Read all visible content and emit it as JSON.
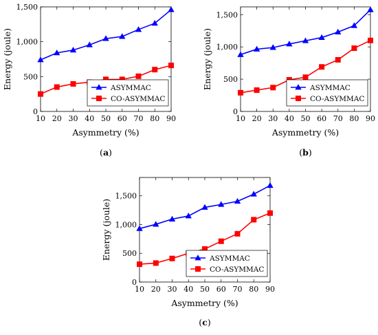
{
  "chart_data": [
    {
      "type": "line",
      "caption_letter": "a",
      "x": [
        10,
        20,
        30,
        40,
        50,
        60,
        70,
        80,
        90
      ],
      "xlabel": "Asymmetry (%)",
      "ylabel": "Energy (joule)",
      "xlim": [
        10,
        90
      ],
      "ylim": [
        0,
        1500
      ],
      "yticks": [
        0,
        500,
        1000,
        1500
      ],
      "ytick_labels": [
        "0",
        "500",
        "1,000",
        "1,500"
      ],
      "xticks": [
        10,
        20,
        30,
        40,
        50,
        60,
        70,
        80,
        90
      ],
      "legend_placement": "bottom-right",
      "series": [
        {
          "name": "ASYMMAC",
          "color": "#0000ff",
          "marker": "triangle-open",
          "values": [
            740,
            840,
            880,
            955,
            1045,
            1075,
            1175,
            1265,
            1460
          ]
        },
        {
          "name": "CO-ASYMMAC",
          "color": "#ff0000",
          "marker": "square-filled",
          "values": [
            250,
            350,
            395,
            420,
            460,
            460,
            505,
            600,
            660
          ]
        }
      ]
    },
    {
      "type": "line",
      "caption_letter": "b",
      "x": [
        10,
        20,
        30,
        40,
        50,
        60,
        70,
        80,
        90
      ],
      "xlabel": "Asymmetry (%)",
      "ylabel": "Energy (joule)",
      "xlim": [
        10,
        90
      ],
      "ylim": [
        0,
        1620
      ],
      "yticks": [
        0,
        500,
        1000,
        1500
      ],
      "ytick_labels": [
        "0",
        "500",
        "1,000",
        "1,500"
      ],
      "xticks": [
        10,
        20,
        30,
        40,
        50,
        60,
        70,
        80,
        90
      ],
      "legend_placement": "bottom-right",
      "series": [
        {
          "name": "ASYMMAC",
          "color": "#0000ff",
          "marker": "triangle-open",
          "values": [
            880,
            965,
            990,
            1045,
            1095,
            1145,
            1230,
            1330,
            1575
          ]
        },
        {
          "name": "CO-ASYMMAC",
          "color": "#ff0000",
          "marker": "square-filled",
          "values": [
            290,
            330,
            370,
            490,
            530,
            690,
            800,
            980,
            1100
          ]
        }
      ]
    },
    {
      "type": "line",
      "caption_letter": "c",
      "x": [
        10,
        20,
        30,
        40,
        50,
        60,
        70,
        80,
        90
      ],
      "xlabel": "Asymmetry (%)",
      "ylabel": "Energy (joule)",
      "xlim": [
        10,
        90
      ],
      "ylim": [
        0,
        1820
      ],
      "yticks": [
        0,
        500,
        1000,
        1500
      ],
      "ytick_labels": [
        "0",
        "500",
        "1,000",
        "1,500"
      ],
      "xticks": [
        10,
        20,
        30,
        40,
        50,
        60,
        70,
        80,
        90
      ],
      "legend_placement": "bottom-right",
      "series": [
        {
          "name": "ASYMMAC",
          "color": "#0000ff",
          "marker": "triangle-open",
          "values": [
            930,
            1005,
            1095,
            1150,
            1300,
            1350,
            1405,
            1530,
            1680
          ]
        },
        {
          "name": "CO-ASYMMAC",
          "color": "#ff0000",
          "marker": "square-filled",
          "values": [
            310,
            330,
            410,
            500,
            575,
            710,
            840,
            1085,
            1200
          ]
        }
      ]
    }
  ]
}
